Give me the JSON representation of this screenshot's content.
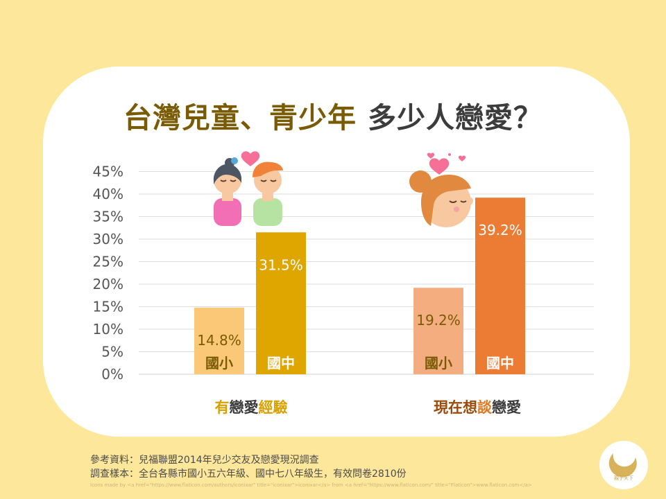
{
  "title": {
    "part1": "台灣兒童、青少年",
    "part2": "多少人戀愛？"
  },
  "categories": [
    {
      "label": "有戀愛經驗",
      "highlight_chars": [
        "有",
        "經驗"
      ]
    },
    {
      "label": "現在想談戀愛",
      "highlight_chars": [
        "現在",
        "想",
        "談"
      ]
    }
  ],
  "chart_data": {
    "type": "bar",
    "categories": [
      "有戀愛經驗",
      "現在想談戀愛"
    ],
    "series": [
      {
        "name": "國小",
        "values": [
          14.8,
          19.2
        ]
      },
      {
        "name": "國中",
        "values": [
          31.5,
          39.2
        ]
      }
    ],
    "data_labels": [
      [
        "14.8%",
        "31.5%"
      ],
      [
        "19.2%",
        "39.2%"
      ]
    ],
    "bar_inner_labels": [
      "國小",
      "國中",
      "國小",
      "國中"
    ],
    "y_ticks": [
      "0%",
      "5%",
      "10%",
      "15%",
      "20%",
      "25%",
      "30%",
      "35%",
      "40%",
      "45%"
    ],
    "ylim": [
      0,
      45
    ],
    "y_unit": "%",
    "grid": true,
    "legend": "none",
    "colors": {
      "group1_elem": "#fbc878",
      "group1_mid": "#dfa600",
      "group2_elem": "#f3ad7e",
      "group2_mid": "#ec7c33",
      "label_dark": "#7a5b05"
    }
  },
  "footer": {
    "source": "參考資料：兒福聯盟2014年兒少交友及戀愛現況調查",
    "sample": "調查樣本：全台各縣市國小五六年級、國中七八年級生，有效問卷2810份",
    "credit": "Icons made by <a href=\"https://www.flaticon.com/authors/iconixar\" title=\"iconixar\">iconixar</a> from <a href=\"https://www.flaticon.com/\" title=\"Flaticon\">www.flaticon.com</a>"
  },
  "logo": {
    "text": "親子天下"
  },
  "icons": [
    "couple-icon",
    "girl-in-love-icon",
    "heart-icon"
  ]
}
